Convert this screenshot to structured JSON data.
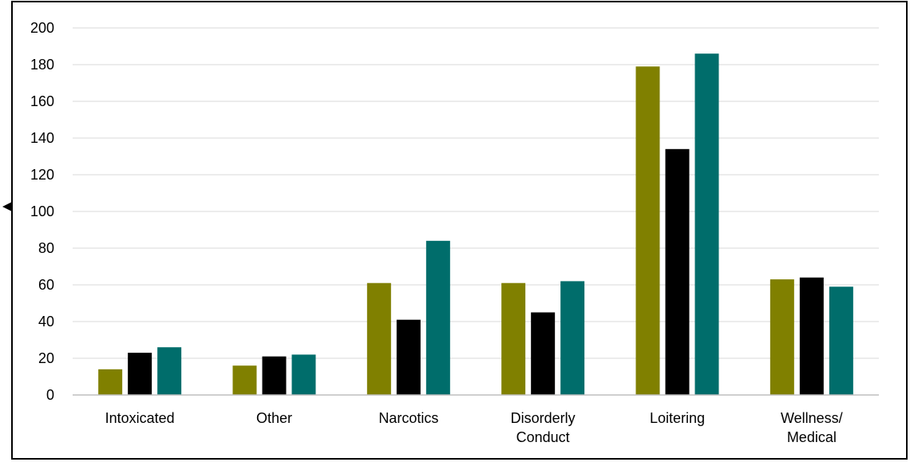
{
  "colors": {
    "series": [
      "#808000",
      "#000000",
      "#006d6b"
    ],
    "gridline": "#d9d9d9",
    "axis": "#bfbfbf",
    "frame": "#000000"
  },
  "chart_data": {
    "type": "bar",
    "categories": [
      [
        "Intoxicated"
      ],
      [
        "Other"
      ],
      [
        "Narcotics"
      ],
      [
        "Disorderly",
        "Conduct"
      ],
      [
        "Loitering"
      ],
      [
        "Wellness/",
        "Medical"
      ]
    ],
    "series": [
      {
        "values": [
          14,
          16,
          61,
          61,
          179,
          63
        ]
      },
      {
        "values": [
          23,
          21,
          41,
          45,
          134,
          64
        ]
      },
      {
        "values": [
          26,
          22,
          84,
          62,
          186,
          59
        ]
      }
    ],
    "ylim": [
      0,
      200
    ],
    "yticks": [
      0,
      20,
      40,
      60,
      80,
      100,
      120,
      140,
      160,
      180,
      200
    ],
    "grid": true,
    "legend": "none"
  }
}
